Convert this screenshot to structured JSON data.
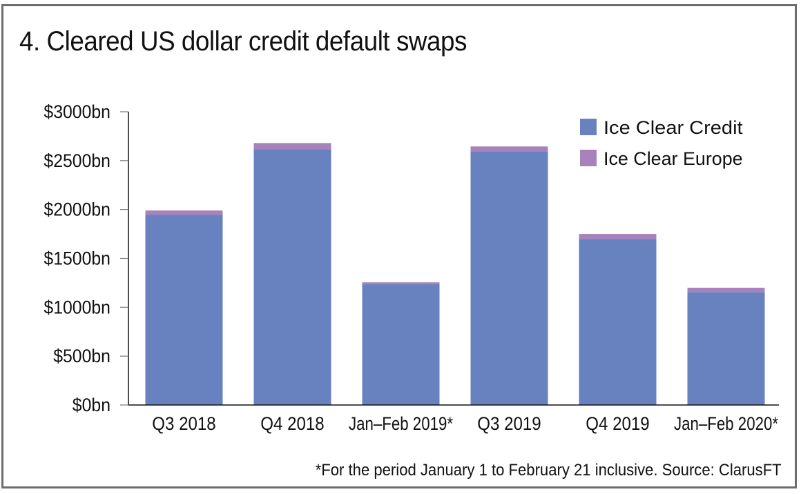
{
  "chart_data": {
    "type": "bar",
    "stacked": true,
    "title": "4. Cleared US dollar credit default swaps",
    "xlabel": "",
    "ylabel": "",
    "categories": [
      "Q3 2018",
      "Q4 2018",
      "Jan–Feb 2019*",
      "Q3 2019",
      "Q4 2019",
      "Jan–Feb 2020*"
    ],
    "series": [
      {
        "name": "Ice Clear Credit",
        "color": "#6782be",
        "values": [
          1945,
          2615,
          1235,
          2595,
          1700,
          1155
        ]
      },
      {
        "name": "Ice Clear Europe",
        "color": "#a883bb",
        "values": [
          45,
          65,
          20,
          50,
          50,
          45
        ]
      }
    ],
    "ylim": [
      0,
      3000
    ],
    "yticks": [
      0,
      500,
      1000,
      1500,
      2000,
      2500,
      3000
    ],
    "ytick_labels": [
      "$0bn",
      "$500bn",
      "$1000bn",
      "$1500bn",
      "$2000bn",
      "$2500bn",
      "$3000bn"
    ],
    "grid": false,
    "legend_position": "top-right",
    "footnote": "*For the period January 1 to February 21 inclusive. Source: ClarusFT"
  }
}
